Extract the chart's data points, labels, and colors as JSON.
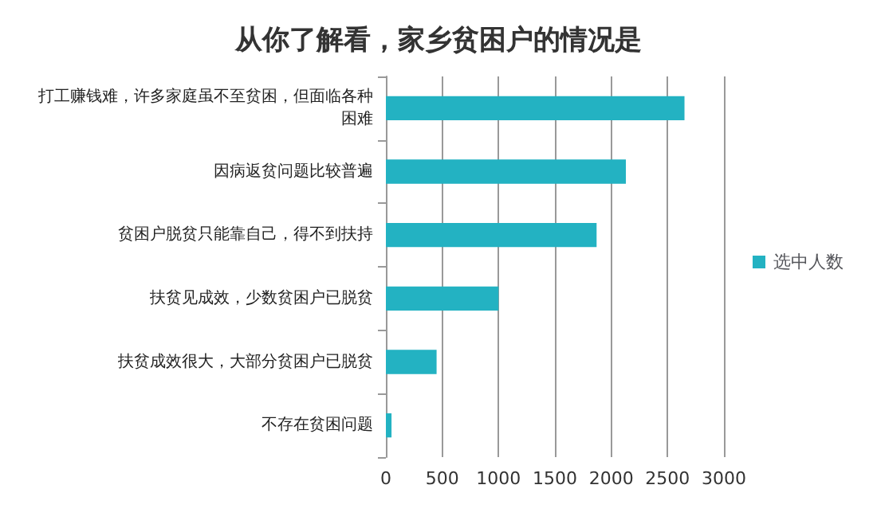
{
  "chart_data": {
    "type": "bar",
    "orientation": "horizontal",
    "title": "从你了解看，家乡贫困户的情况是",
    "categories": [
      "打工赚钱难，许多家庭虽不至贫困，但面临各种困难",
      "因病返贫问题比较普遍",
      "贫困户脱贫只能靠自己，得不到扶持",
      "扶贫见成效，少数贫困户已脱贫",
      "扶贫成效很大，大部分贫困户已脱贫",
      "不存在贫困问题"
    ],
    "series": [
      {
        "name": "选中人数",
        "color": "#23b2c2",
        "values": [
          2650,
          2130,
          1870,
          1000,
          450,
          50
        ]
      }
    ],
    "xlim": [
      0,
      3000
    ],
    "xticks": [
      0,
      500,
      1000,
      1500,
      2000,
      2500,
      3000
    ],
    "grid": "x",
    "legend": "right"
  }
}
